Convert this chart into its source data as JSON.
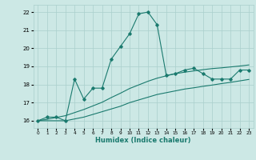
{
  "title": "",
  "xlabel": "Humidex (Indice chaleur)",
  "bg_color": "#cce8e5",
  "grid_color": "#aacfcc",
  "line_color": "#1a7a6e",
  "x_data": [
    0,
    1,
    2,
    3,
    4,
    5,
    6,
    7,
    8,
    9,
    10,
    11,
    12,
    13,
    14,
    15,
    16,
    17,
    18,
    19,
    20,
    21,
    22,
    23
  ],
  "y_main": [
    16.0,
    16.2,
    16.2,
    16.0,
    18.3,
    17.2,
    17.8,
    17.8,
    19.4,
    20.1,
    20.8,
    21.9,
    22.0,
    21.3,
    18.5,
    18.6,
    18.8,
    18.9,
    18.6,
    18.3,
    18.3,
    18.3,
    18.8,
    18.8
  ],
  "y_min": [
    16.0,
    16.0,
    16.0,
    16.0,
    16.1,
    16.2,
    16.35,
    16.5,
    16.65,
    16.8,
    17.0,
    17.15,
    17.3,
    17.45,
    17.55,
    17.65,
    17.75,
    17.82,
    17.9,
    17.97,
    18.05,
    18.12,
    18.2,
    18.28
  ],
  "y_max": [
    16.0,
    16.08,
    16.18,
    16.28,
    16.45,
    16.62,
    16.82,
    17.02,
    17.28,
    17.52,
    17.78,
    17.98,
    18.18,
    18.35,
    18.48,
    18.6,
    18.68,
    18.75,
    18.82,
    18.88,
    18.92,
    18.97,
    19.02,
    19.08
  ],
  "ylim": [
    15.6,
    22.4
  ],
  "xlim": [
    -0.5,
    23.5
  ],
  "yticks": [
    16,
    17,
    18,
    19,
    20,
    21,
    22
  ],
  "xticks": [
    0,
    1,
    2,
    3,
    4,
    5,
    6,
    7,
    8,
    9,
    10,
    11,
    12,
    13,
    14,
    15,
    16,
    17,
    18,
    19,
    20,
    21,
    22,
    23
  ]
}
